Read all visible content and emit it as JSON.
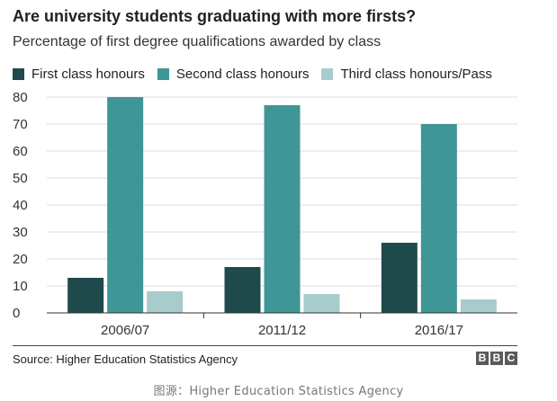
{
  "chart_data": {
    "type": "bar",
    "title": "Are university students graduating with more firsts?",
    "subtitle": "Percentage of first degree qualifications awarded by class",
    "categories": [
      "2006/07",
      "2011/12",
      "2016/17"
    ],
    "series": [
      {
        "name": "First class honours",
        "color": "#1f4a4c",
        "values": [
          13,
          17,
          26
        ]
      },
      {
        "name": "Second class honours",
        "color": "#3f9696",
        "values": [
          80,
          77,
          70
        ]
      },
      {
        "name": "Third class honours/Pass",
        "color": "#a8cccc",
        "values": [
          8,
          7,
          5
        ]
      }
    ],
    "ylim": [
      0,
      80
    ],
    "yticks": [
      0,
      10,
      20,
      30,
      40,
      50,
      60,
      70,
      80
    ],
    "ytick_labels": [
      "0",
      "10",
      "20",
      "30",
      "40",
      "50",
      "60",
      "70",
      "80"
    ],
    "grid": true,
    "legend_position": "top-left"
  },
  "footer": {
    "source": "Source: Higher Education Statistics Agency",
    "logo_letters": [
      "B",
      "B",
      "C"
    ]
  },
  "caption": "图源：Higher Education Statistics Agency"
}
